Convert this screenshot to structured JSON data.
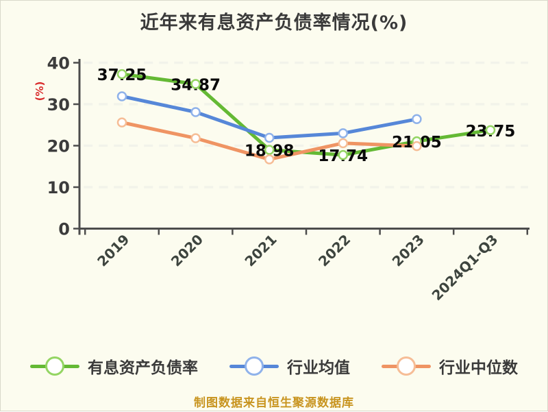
{
  "title": "近年来有息资产负债率情况(%)",
  "footer": {
    "source_note": "制图数据来自恒生聚源数据库"
  },
  "colors": {
    "background": "#fcfcef",
    "axis": "#4c4c4c",
    "grid": "#f2f3ea",
    "tick_label": "#3d443e",
    "data_label": "#0a0a0a",
    "ylabel": "#d92b2b",
    "title_text": "#3a3a3a",
    "footer_text": "#c8941f"
  },
  "chart_data": {
    "type": "line",
    "title": "近年来有息资产负债率情况(%)",
    "xlabel": "",
    "ylabel": "(%)",
    "categories": [
      "2019",
      "2020",
      "2021",
      "2022",
      "2023",
      "2024Q1-Q3"
    ],
    "series": [
      {
        "name": "有息资产负债率",
        "color": "#64b934",
        "marker_ring": "#94d563",
        "values": [
          37.25,
          34.87,
          18.98,
          17.74,
          21.05,
          23.75
        ],
        "show_labels": true
      },
      {
        "name": "行业均值",
        "color": "#5687d8",
        "marker_ring": "#8fb2ea",
        "values": [
          31.9,
          28.1,
          21.9,
          23.0,
          26.4,
          null
        ],
        "show_labels": false
      },
      {
        "name": "行业中位数",
        "color": "#ef9463",
        "marker_ring": "#f6bd96",
        "values": [
          25.6,
          21.8,
          16.7,
          20.6,
          19.9,
          null
        ],
        "show_labels": false
      }
    ],
    "ylim": [
      0,
      40
    ],
    "yticks": [
      0,
      10,
      20,
      30,
      40
    ],
    "grid": "horizontal dashed white lines at each y tick",
    "legend_position": "bottom",
    "x_tick_rotation": -45
  }
}
